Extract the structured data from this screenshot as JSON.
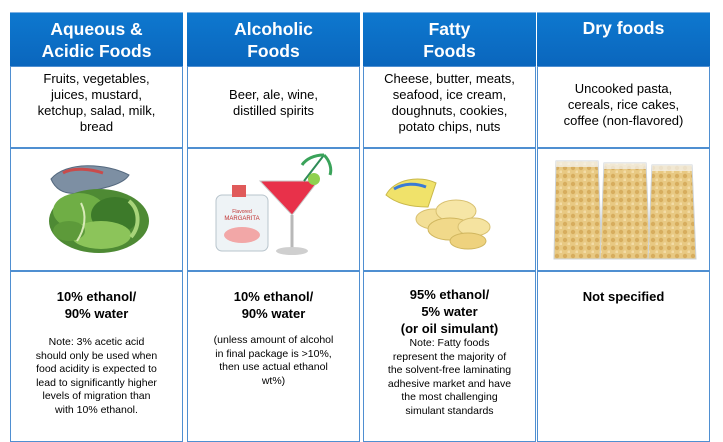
{
  "columns": [
    {
      "header": [
        "Aqueous &",
        "Acidic Foods"
      ],
      "description": [
        "Fruits, vegetables,",
        "juices, mustard,",
        "ketchup, salad, milk,",
        "bread"
      ],
      "image": "salad-bag-icon",
      "value": [
        "10% ethanol/",
        "90% water"
      ],
      "note": [
        "Note: 3% acetic acid",
        "should only be used when",
        "food acidity is expected to",
        "lead to significantly higher",
        "levels of migration than",
        "with 10% ethanol."
      ]
    },
    {
      "header": [
        "Alcoholic",
        "Foods"
      ],
      "description": [
        "Beer, ale, wine,",
        "distilled spirits"
      ],
      "image": "cocktail-pouch-icon",
      "image_text": [
        "Flavored",
        "MARGARITA"
      ],
      "value": [
        "10% ethanol/",
        "90% water"
      ],
      "note": [
        "(unless amount of alcohol",
        "in final package is >10%,",
        "then use actual ethanol",
        "wt%)"
      ]
    },
    {
      "header": [
        "Fatty",
        "Foods"
      ],
      "description": [
        "Cheese, butter, meats,",
        "seafood, ice cream,",
        "doughnuts, cookies,",
        "potato chips, nuts"
      ],
      "image": "chips-bag-icon",
      "value": [
        "95% ethanol/",
        "5% water",
        "(or oil simulant)"
      ],
      "note": [
        "Note: Fatty foods",
        "represent the majority of",
        "the solvent-free  laminating",
        "adhesive market and have",
        "the most challenging",
        "simulant standards"
      ]
    },
    {
      "header": [
        "Dry foods"
      ],
      "description": [
        "Uncooked pasta,",
        "cereals, rice cakes,",
        "coffee (non-flavored)"
      ],
      "image": "pasta-bags-icon",
      "value": [
        "Not specified"
      ],
      "note": []
    }
  ],
  "colors": {
    "header_blue": "#0a6fc6",
    "border_blue": "#4f8fd1"
  }
}
